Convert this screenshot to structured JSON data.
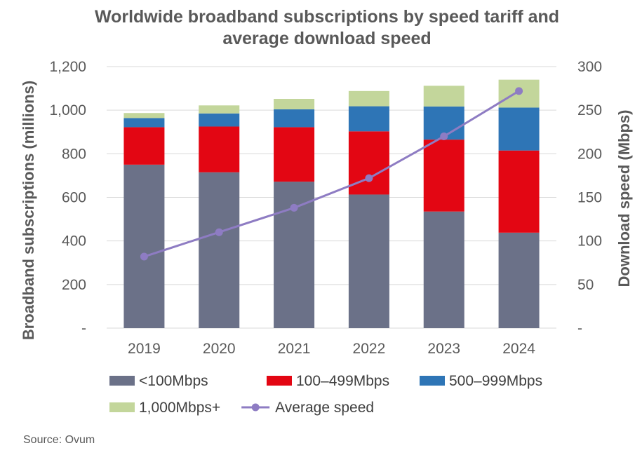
{
  "chart_data": {
    "type": "bar",
    "stacked": true,
    "title_lines": [
      "Worldwide broadband subscriptions by speed tariff and",
      "average download speed"
    ],
    "categories": [
      "2019",
      "2020",
      "2021",
      "2022",
      "2023",
      "2024"
    ],
    "series": [
      {
        "name": "<100Mbps",
        "color": "#6B7188",
        "axis": "left",
        "kind": "bar",
        "values": [
          750,
          715,
          672,
          613,
          535,
          438
        ]
      },
      {
        "name": "100–499Mbps",
        "color": "#E30613",
        "axis": "left",
        "kind": "bar",
        "values": [
          172,
          210,
          250,
          290,
          330,
          377
        ]
      },
      {
        "name": "500–999Mbps",
        "color": "#2E75B6",
        "axis": "left",
        "kind": "bar",
        "values": [
          42,
          60,
          82,
          115,
          152,
          197
        ]
      },
      {
        "name": "1,000Mbps+",
        "color": "#C3D69B",
        "axis": "left",
        "kind": "bar",
        "values": [
          23,
          37,
          48,
          70,
          95,
          128
        ]
      },
      {
        "name": "Average speed",
        "color": "#8E7CC3",
        "axis": "right",
        "kind": "line",
        "values": [
          82,
          110,
          138,
          172,
          220,
          272
        ]
      }
    ],
    "y_left": {
      "label": "Broadband subscriptions (millions)",
      "ylim": [
        0,
        1200
      ],
      "ticks": [
        0,
        200,
        400,
        600,
        800,
        1000,
        1200
      ],
      "tick_labels": [
        "-",
        "200",
        "400",
        "600",
        "800",
        "1,000",
        "1,200"
      ]
    },
    "y_right": {
      "label": "Download speed (Mbps)",
      "ylim": [
        0,
        300
      ],
      "ticks": [
        0,
        50,
        100,
        150,
        200,
        250,
        300
      ],
      "tick_labels": [
        "-",
        "50",
        "100",
        "150",
        "200",
        "250",
        "300"
      ]
    },
    "grid": true,
    "legend_position": "bottom",
    "legend_rows": [
      [
        "<100Mbps",
        "100–499Mbps",
        "500–999Mbps"
      ],
      [
        "1,000Mbps+",
        "Average speed"
      ]
    ]
  },
  "source": "Source: Ovum"
}
